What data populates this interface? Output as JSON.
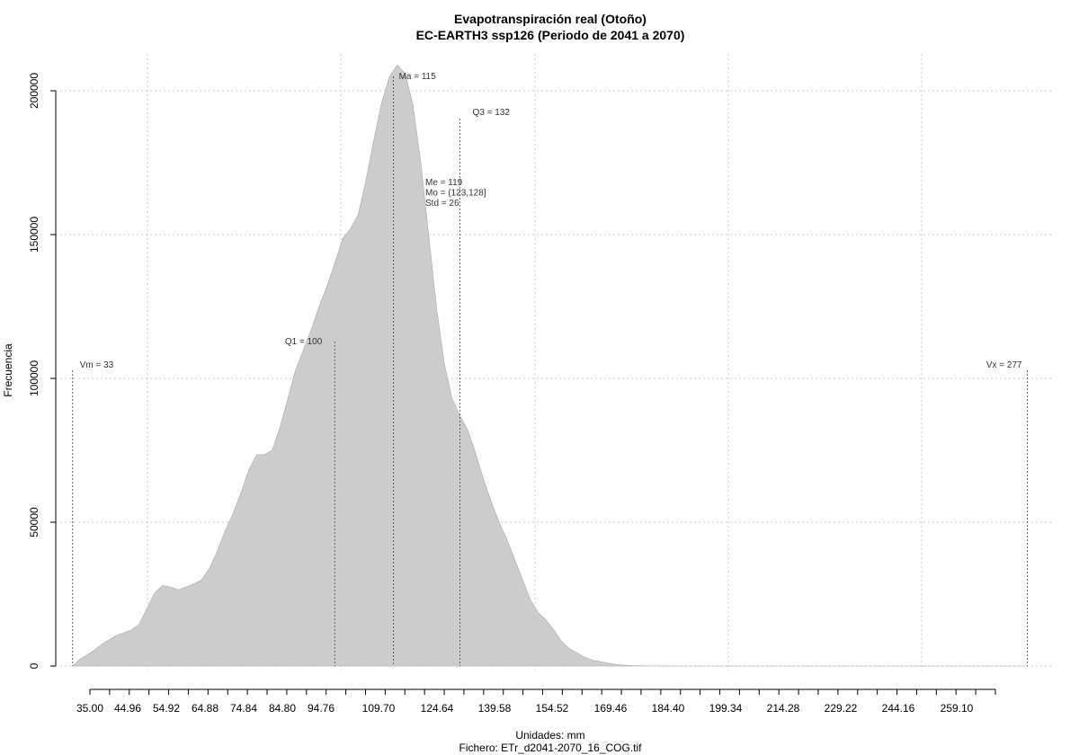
{
  "chart_data": {
    "type": "area",
    "title": "Evapotranspiración real (Otoño)",
    "subtitle": "EC-EARTH3 ssp126 (Periodo de 2041 a 2070)",
    "xlabel": "Unidades: mm",
    "file_label": "Fichero: ETr_d2041-2070_16_COG.tif",
    "ylabel": "Frecuencia",
    "xlim": [
      28.7,
      283.3
    ],
    "ylim": [
      0,
      210000
    ],
    "grid": true,
    "x_tick_labels": [
      "35.00",
      "44.96",
      "54.92",
      "64.88",
      "74.84",
      "84.80",
      "94.76",
      "109.70",
      "124.64",
      "139.58",
      "154.52",
      "169.46",
      "184.40",
      "199.34",
      "214.28",
      "229.22",
      "244.16",
      "259.10"
    ],
    "y_ticks": [
      0,
      50000,
      100000,
      150000,
      200000
    ],
    "y_tick_labels": [
      "0",
      "50000",
      "100000",
      "150000",
      "200000"
    ],
    "x": [
      33,
      35,
      38,
      41,
      44,
      46,
      48,
      50,
      52,
      54,
      56,
      58,
      60,
      62,
      64,
      66,
      68,
      70,
      72,
      74,
      76,
      78,
      80,
      82,
      84,
      86,
      88,
      90,
      92,
      94,
      96,
      98,
      100,
      102,
      104,
      106,
      108,
      110,
      112,
      114,
      116,
      118,
      120,
      122,
      124,
      126,
      128,
      130,
      132,
      134,
      136,
      138,
      140,
      142,
      144,
      146,
      148,
      150,
      152,
      154,
      156,
      158,
      160,
      162,
      164,
      166,
      168,
      170,
      172,
      174,
      176,
      178,
      180,
      184,
      188,
      192,
      196,
      200,
      210,
      230,
      250,
      270,
      277
    ],
    "y": [
      0,
      2500,
      5000,
      8000,
      10500,
      11500,
      12500,
      14500,
      20000,
      25500,
      28000,
      27500,
      26500,
      27500,
      28500,
      30000,
      34000,
      40000,
      47000,
      53000,
      60000,
      68000,
      73500,
      73500,
      75000,
      83000,
      93000,
      103000,
      110000,
      117000,
      125000,
      132000,
      140000,
      148500,
      152000,
      157000,
      169000,
      183000,
      196000,
      205000,
      209000,
      206000,
      195000,
      175000,
      150000,
      125000,
      105000,
      93000,
      87000,
      82000,
      74000,
      65000,
      57000,
      50000,
      44000,
      37000,
      30000,
      23000,
      18500,
      16000,
      12500,
      8500,
      6000,
      4500,
      3000,
      2000,
      1500,
      1000,
      500,
      300,
      150,
      80,
      40,
      20,
      10,
      0,
      0,
      0,
      0,
      0,
      0,
      0,
      0
    ],
    "annotations": [
      {
        "label": "Vm = 33",
        "x": 33
      },
      {
        "label": "Q1 = 100",
        "x": 100
      },
      {
        "label": "Ma = 115",
        "x": 115
      },
      {
        "label": "Q3 = 132",
        "x": 132
      },
      {
        "label": "Vx = 277",
        "x": 277
      }
    ],
    "stats_lines": [
      "Me = 119",
      "Mo = (123,128]",
      "Std = 26"
    ],
    "fill_color": "#cccccc"
  }
}
